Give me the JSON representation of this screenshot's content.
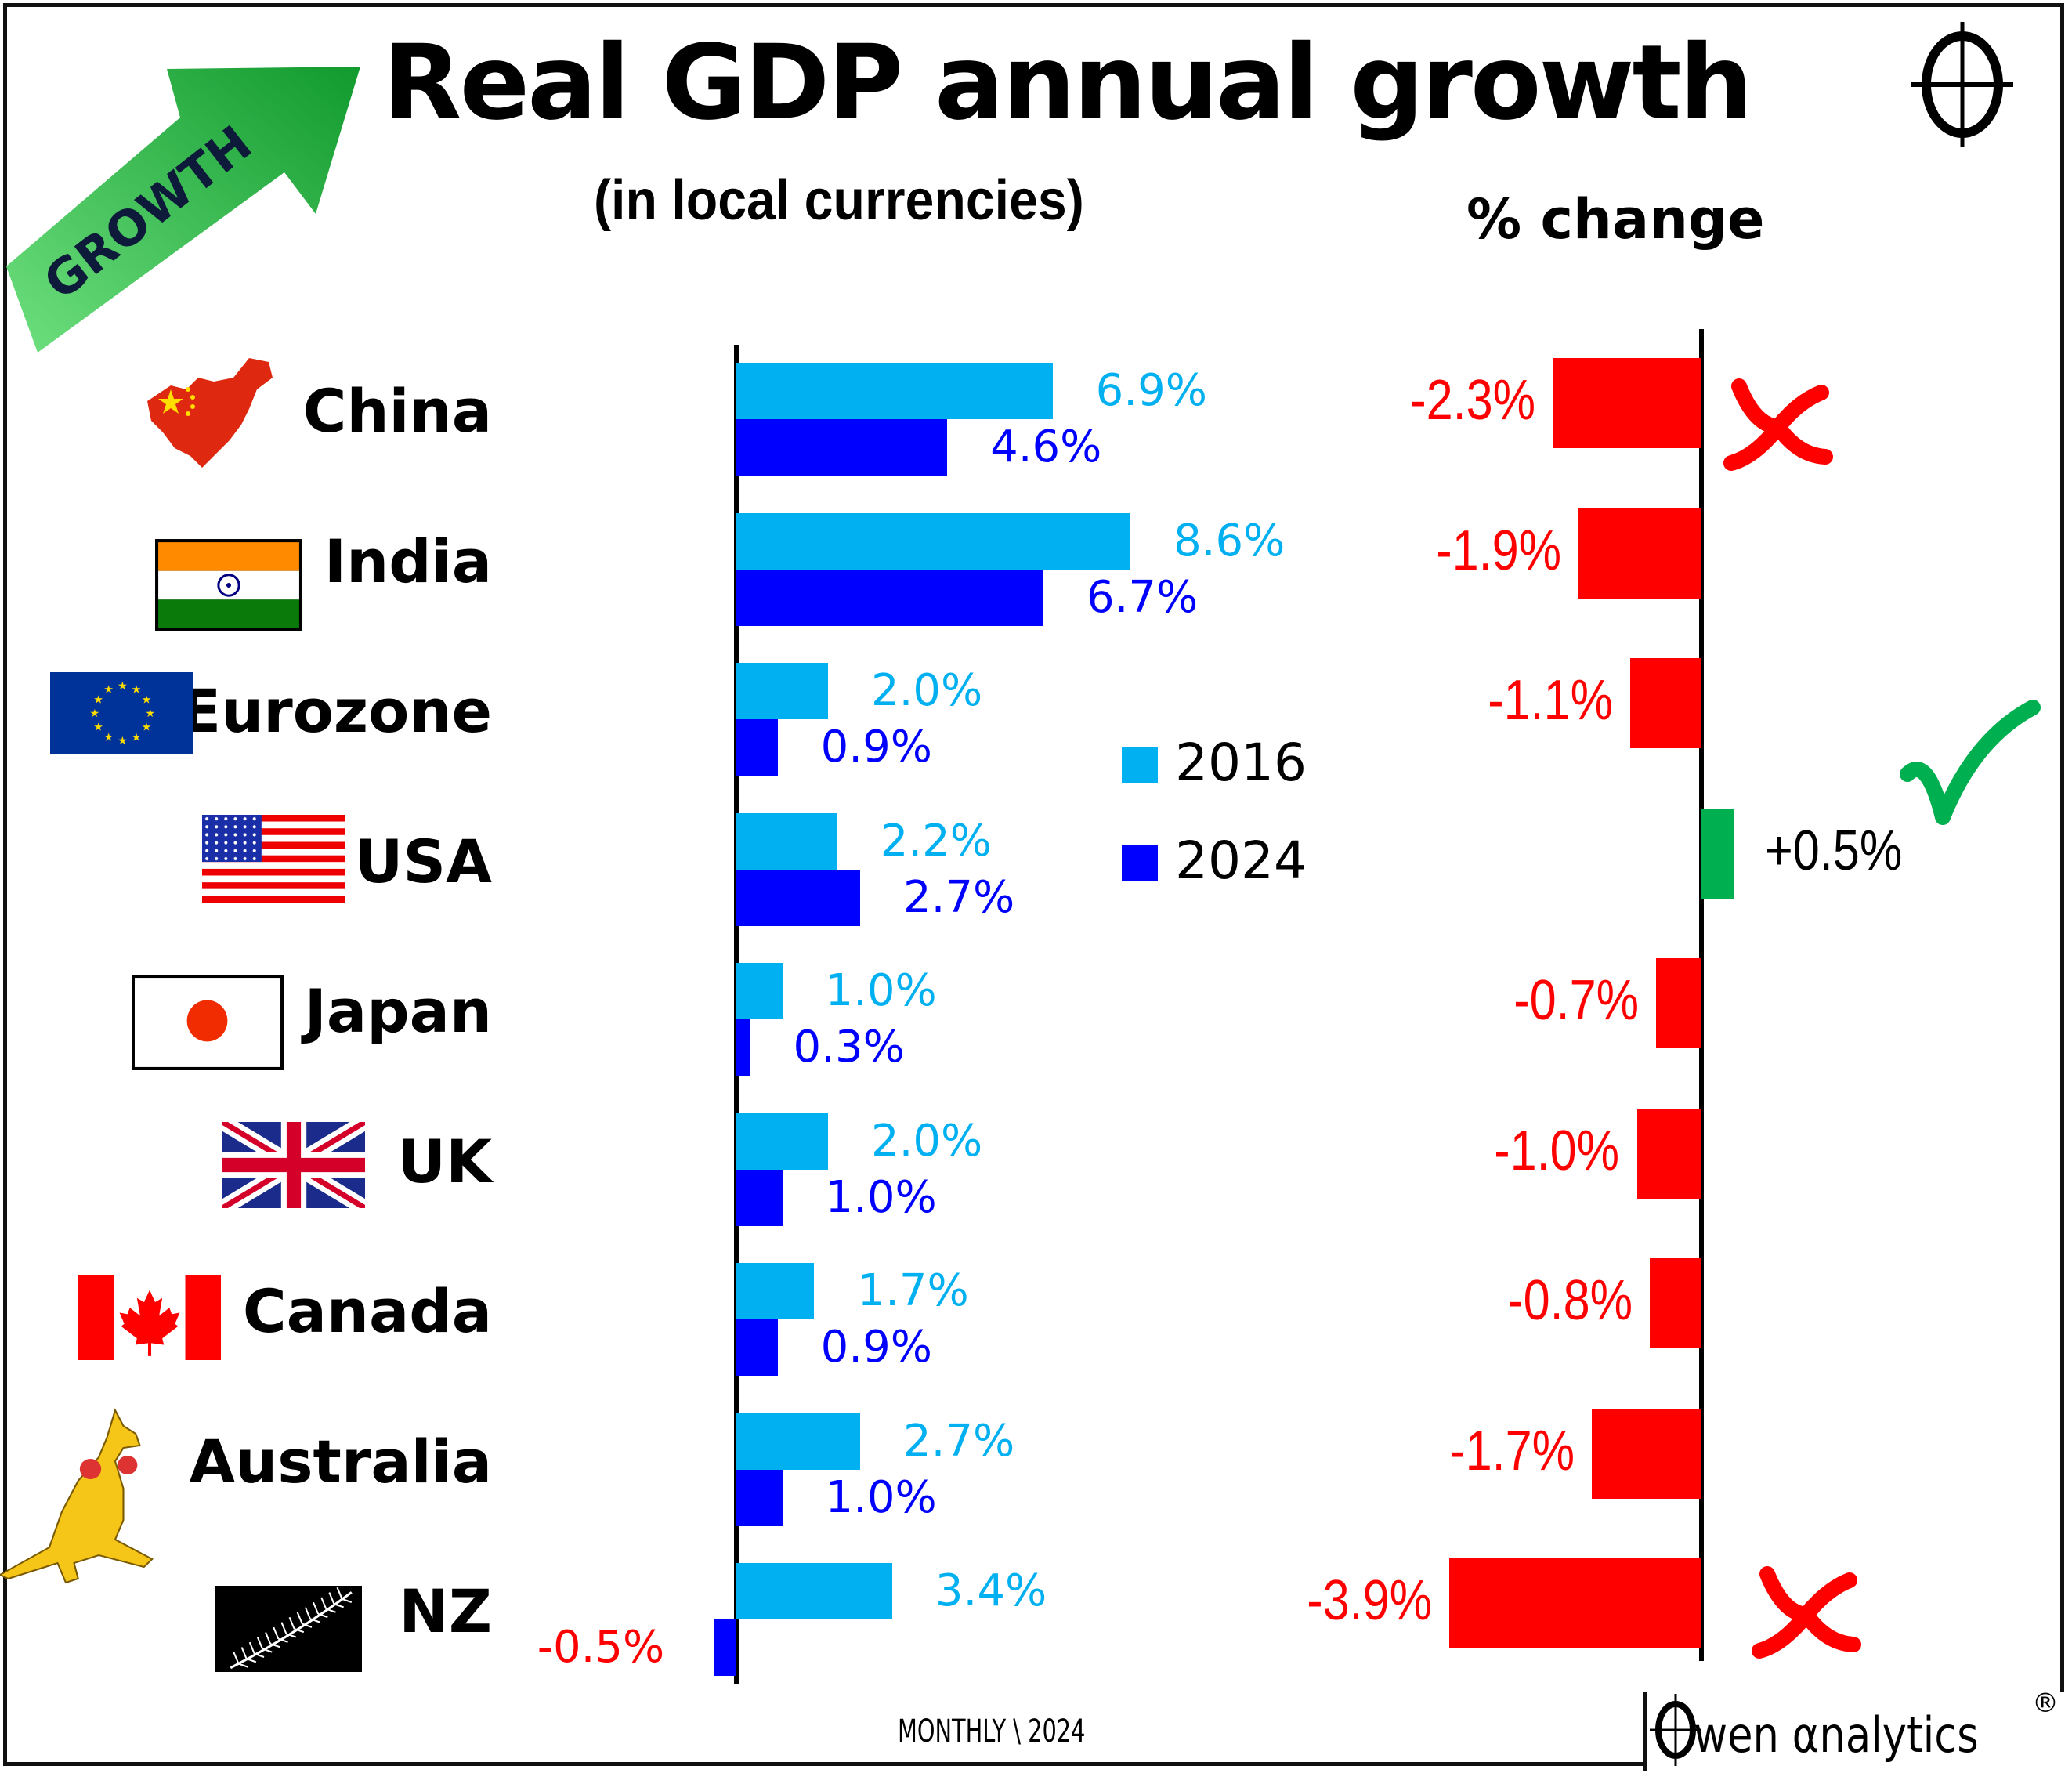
{
  "header": {
    "title": "Real GDP annual growth",
    "subtitle": "(in local currencies)",
    "change_heading": "% change",
    "badge_text": "GROWTH"
  },
  "legend": [
    {
      "label": "2016",
      "color": "#00b0f0"
    },
    {
      "label": "2024",
      "color": "#0000ff"
    }
  ],
  "colors": {
    "series_2016": "#00b0f0",
    "series_2024": "#0000ff",
    "negative": "#ff0000",
    "positive": "#00b050",
    "axis": "#000000"
  },
  "chart_data": {
    "type": "bar",
    "orientation": "horizontal",
    "title": "Real GDP annual growth",
    "subtitle": "(in local currencies)",
    "unit": "%",
    "categories": [
      "China",
      "India",
      "Eurozone",
      "USA",
      "Japan",
      "UK",
      "Canada",
      "Australia",
      "NZ"
    ],
    "series": [
      {
        "name": "2016",
        "values": [
          6.9,
          8.6,
          2.0,
          2.2,
          1.0,
          2.0,
          1.7,
          2.7,
          3.4
        ],
        "labels": [
          "6.9%",
          "8.6%",
          "2.0%",
          "2.2%",
          "1.0%",
          "2.0%",
          "1.7%",
          "2.7%",
          "3.4%"
        ]
      },
      {
        "name": "2024",
        "values": [
          4.6,
          6.7,
          0.9,
          2.7,
          0.3,
          1.0,
          0.9,
          1.0,
          -0.5
        ],
        "labels": [
          "4.6%",
          "6.7%",
          "0.9%",
          "2.7%",
          "0.3%",
          "1.0%",
          "0.9%",
          "1.0%",
          "-0.5%"
        ]
      }
    ],
    "change": {
      "title": "% change",
      "values": [
        -2.3,
        -1.9,
        -1.1,
        0.5,
        -0.7,
        -1.0,
        -0.8,
        -1.7,
        -3.9
      ],
      "labels": [
        "-2.3%",
        "-1.9%",
        "-1.1%",
        "+0.5%",
        "-0.7%",
        "-1.0%",
        "-0.8%",
        "-1.7%",
        "-3.9%"
      ]
    },
    "markers": [
      {
        "category": "China",
        "mark": "cross"
      },
      {
        "category": "USA",
        "mark": "check"
      },
      {
        "category": "NZ",
        "mark": "cross"
      }
    ],
    "legend_position": "center",
    "grid": false
  },
  "countries": [
    {
      "name": "China",
      "flag": "china-map-icon"
    },
    {
      "name": "India",
      "flag": "india-flag-icon"
    },
    {
      "name": "Eurozone",
      "flag": "eu-flag-icon"
    },
    {
      "name": "USA",
      "flag": "usa-flag-icon"
    },
    {
      "name": "Japan",
      "flag": "japan-flag-icon"
    },
    {
      "name": "UK",
      "flag": "uk-flag-icon"
    },
    {
      "name": "Canada",
      "flag": "canada-flag-icon"
    },
    {
      "name": "Australia",
      "flag": "kangaroo-icon"
    },
    {
      "name": "NZ",
      "flag": "nz-fern-flag-icon"
    }
  ],
  "footer": {
    "monthly": "MONTHLY \\ 2024",
    "brand_name": "wen αnalytics",
    "registered": "®"
  }
}
